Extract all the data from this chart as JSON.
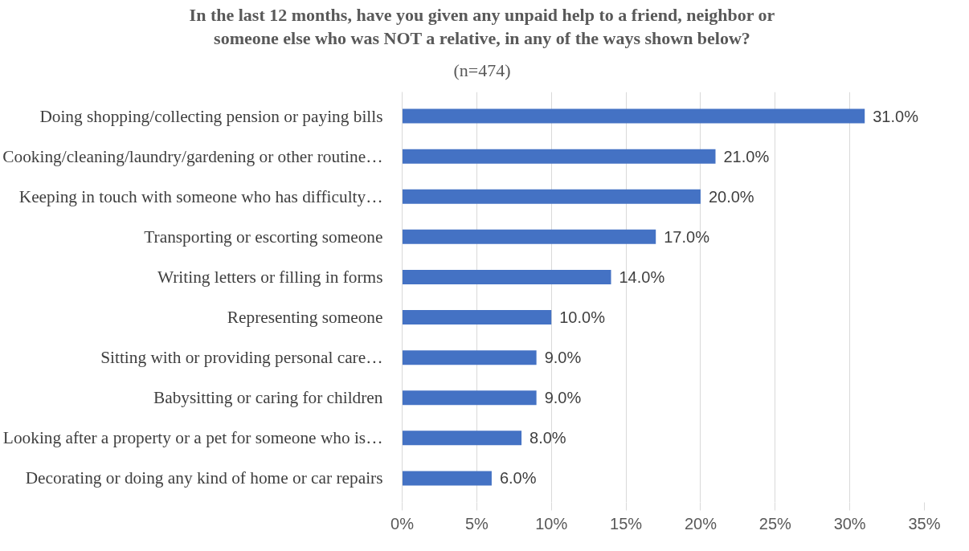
{
  "chart_data": {
    "type": "bar",
    "orientation": "horizontal",
    "title": "In the last 12 months, have you given any unpaid help to a friend, neighbor or\nsomeone else who was NOT a relative, in any of the ways shown below?",
    "subtitle": "(n=474)",
    "categories": [
      "Doing shopping/collecting pension or paying bills",
      "Cooking/cleaning/laundry/gardening or other routine…",
      "Keeping in touch with someone who has difficulty…",
      "Transporting or escorting someone",
      "Writing letters or filling in forms",
      "Representing someone",
      "Sitting with or providing personal care…",
      "Babysitting or caring for children",
      "Looking after a property or a pet for someone who is…",
      "Decorating or doing any kind of home or car repairs"
    ],
    "values": [
      31,
      21,
      20,
      17,
      14,
      10,
      9,
      9,
      8,
      6
    ],
    "value_labels": [
      "31.0%",
      "21.0%",
      "20.0%",
      "17.0%",
      "14.0%",
      "10.0%",
      "9.0%",
      "9.0%",
      "8.0%",
      "6.0%"
    ],
    "color": "#4472c4",
    "xlim": [
      0,
      35
    ],
    "xticks": [
      {
        "value": 0,
        "label": "0%"
      },
      {
        "value": 5,
        "label": "5%"
      },
      {
        "value": 10,
        "label": "10%"
      },
      {
        "value": 15,
        "label": "15%"
      },
      {
        "value": 20,
        "label": "20%"
      },
      {
        "value": 25,
        "label": "25%"
      },
      {
        "value": 30,
        "label": "30%"
      },
      {
        "value": 35,
        "label": "35%"
      }
    ],
    "grid": "x"
  }
}
